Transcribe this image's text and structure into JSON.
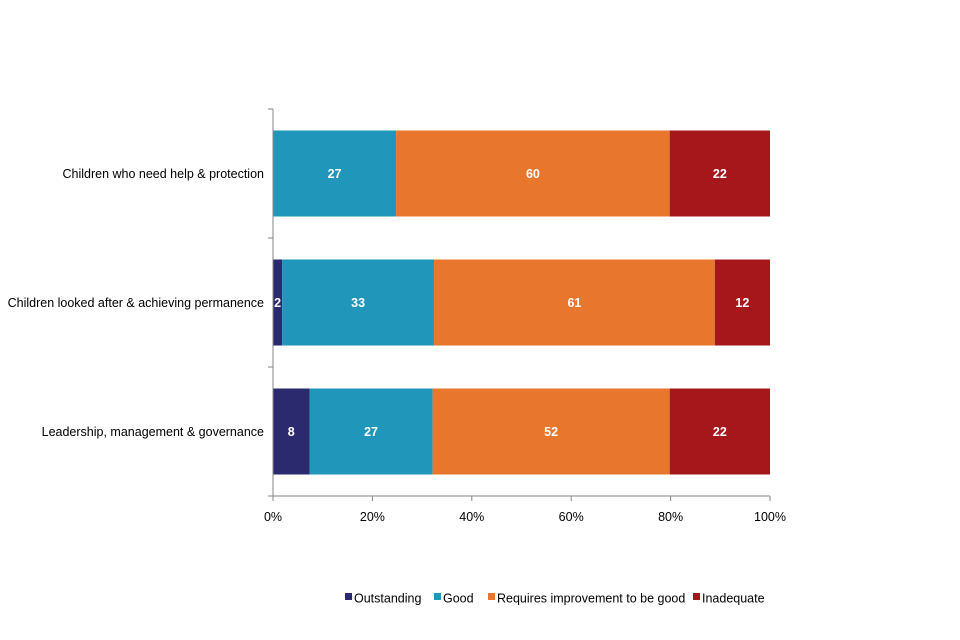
{
  "chart_data": {
    "type": "bar",
    "orientation": "horizontal",
    "stacked": "percent",
    "categories": [
      "Children who need help & protection",
      "Children looked after & achieving permanence",
      "Leadership, management & governance"
    ],
    "series": [
      {
        "name": "Outstanding",
        "color": "#2b2a6e",
        "values": [
          0,
          2,
          8
        ]
      },
      {
        "name": "Good",
        "color": "#2196bb",
        "values": [
          27,
          33,
          27
        ]
      },
      {
        "name": "Requires improvement to be good",
        "color": "#e8762c",
        "values": [
          60,
          61,
          52
        ]
      },
      {
        "name": "Inadequate",
        "color": "#a6171c",
        "values": [
          22,
          12,
          22
        ]
      }
    ],
    "data_labels": [
      [
        "",
        "27",
        "60",
        "22"
      ],
      [
        "2",
        "33",
        "61",
        "12"
      ],
      [
        "8",
        "27",
        "52",
        "22"
      ]
    ],
    "xaxis": {
      "ticks": [
        0,
        20,
        40,
        60,
        80,
        100
      ],
      "tick_labels": [
        "0%",
        "20%",
        "40%",
        "60%",
        "80%",
        "100%"
      ],
      "xlim": [
        0,
        100
      ]
    },
    "title": "",
    "xlabel": "",
    "ylabel": "",
    "grid": false,
    "legend": "bottom"
  }
}
